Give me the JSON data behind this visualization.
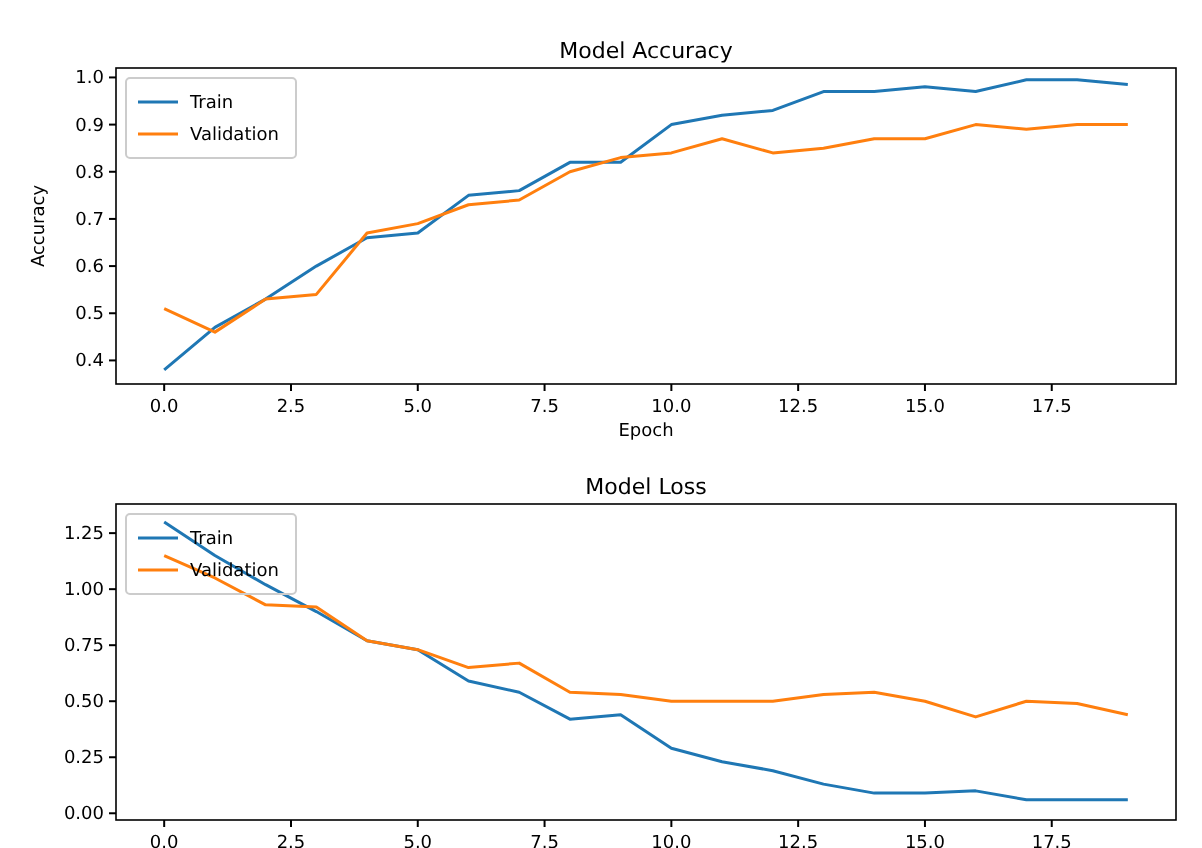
{
  "chart_data": [
    {
      "type": "line",
      "title": "Model Accuracy",
      "xlabel": "Epoch",
      "ylabel": "Accuracy",
      "x": [
        0,
        1,
        2,
        3,
        4,
        5,
        6,
        7,
        8,
        9,
        10,
        11,
        12,
        13,
        14,
        15,
        16,
        17,
        18,
        19
      ],
      "xlim": [
        -0.95,
        19.95
      ],
      "xticks": [
        {
          "value": 0,
          "label": "0.0"
        },
        {
          "value": 2.5,
          "label": "2.5"
        },
        {
          "value": 5,
          "label": "5.0"
        },
        {
          "value": 7.5,
          "label": "7.5"
        },
        {
          "value": 10,
          "label": "10.0"
        },
        {
          "value": 12.5,
          "label": "12.5"
        },
        {
          "value": 15,
          "label": "15.0"
        },
        {
          "value": 17.5,
          "label": "17.5"
        }
      ],
      "ylim": [
        0.35,
        1.02
      ],
      "yticks": [
        0.4,
        0.5,
        0.6,
        0.7,
        0.8,
        0.9,
        {
          "value": 1,
          "label": "1.0"
        }
      ],
      "legend": "top left",
      "series": [
        {
          "name": "Train",
          "color": "#1f77b4",
          "values": [
            0.38,
            0.47,
            0.53,
            0.6,
            0.66,
            0.67,
            0.75,
            0.76,
            0.82,
            0.82,
            0.9,
            0.92,
            0.93,
            0.97,
            0.97,
            0.98,
            0.97,
            0.995,
            0.995,
            0.985
          ]
        },
        {
          "name": "Validation",
          "color": "#ff7f0e",
          "values": [
            0.51,
            0.46,
            0.53,
            0.54,
            0.67,
            0.69,
            0.73,
            0.74,
            0.8,
            0.83,
            0.84,
            0.87,
            0.84,
            0.85,
            0.87,
            0.87,
            0.9,
            0.89,
            0.9,
            0.9
          ]
        }
      ]
    },
    {
      "type": "line",
      "title": "Model Loss",
      "x": [
        0,
        1,
        2,
        3,
        4,
        5,
        6,
        7,
        8,
        9,
        10,
        11,
        12,
        13,
        14,
        15,
        16,
        17,
        18,
        19
      ],
      "xlim": [
        -0.95,
        19.95
      ],
      "xticks": [
        {
          "value": 0,
          "label": "0.0"
        },
        {
          "value": 2.5,
          "label": "2.5"
        },
        {
          "value": 5,
          "label": "5.0"
        },
        {
          "value": 7.5,
          "label": "7.5"
        },
        {
          "value": 10,
          "label": "10.0"
        },
        {
          "value": 12.5,
          "label": "12.5"
        },
        {
          "value": 15,
          "label": "15.0"
        },
        {
          "value": 17.5,
          "label": "17.5"
        }
      ],
      "ylim": [
        -0.03,
        1.38
      ],
      "yticks": [
        {
          "value": 0,
          "label": "0.00"
        },
        0.25,
        {
          "value": 0.5,
          "label": "0.50"
        },
        0.75,
        {
          "value": 1,
          "label": "1.00"
        },
        1.25
      ],
      "legend": "top left",
      "series": [
        {
          "name": "Train",
          "color": "#1f77b4",
          "values": [
            1.3,
            1.15,
            1.02,
            0.9,
            0.77,
            0.73,
            0.59,
            0.54,
            0.42,
            0.44,
            0.29,
            0.23,
            0.19,
            0.13,
            0.09,
            0.09,
            0.1,
            0.06,
            0.06,
            0.06
          ]
        },
        {
          "name": "Validation",
          "color": "#ff7f0e",
          "values": [
            1.15,
            1.05,
            0.93,
            0.92,
            0.77,
            0.73,
            0.65,
            0.67,
            0.54,
            0.53,
            0.5,
            0.5,
            0.5,
            0.53,
            0.54,
            0.5,
            0.43,
            0.5,
            0.49,
            0.44
          ]
        }
      ]
    }
  ]
}
